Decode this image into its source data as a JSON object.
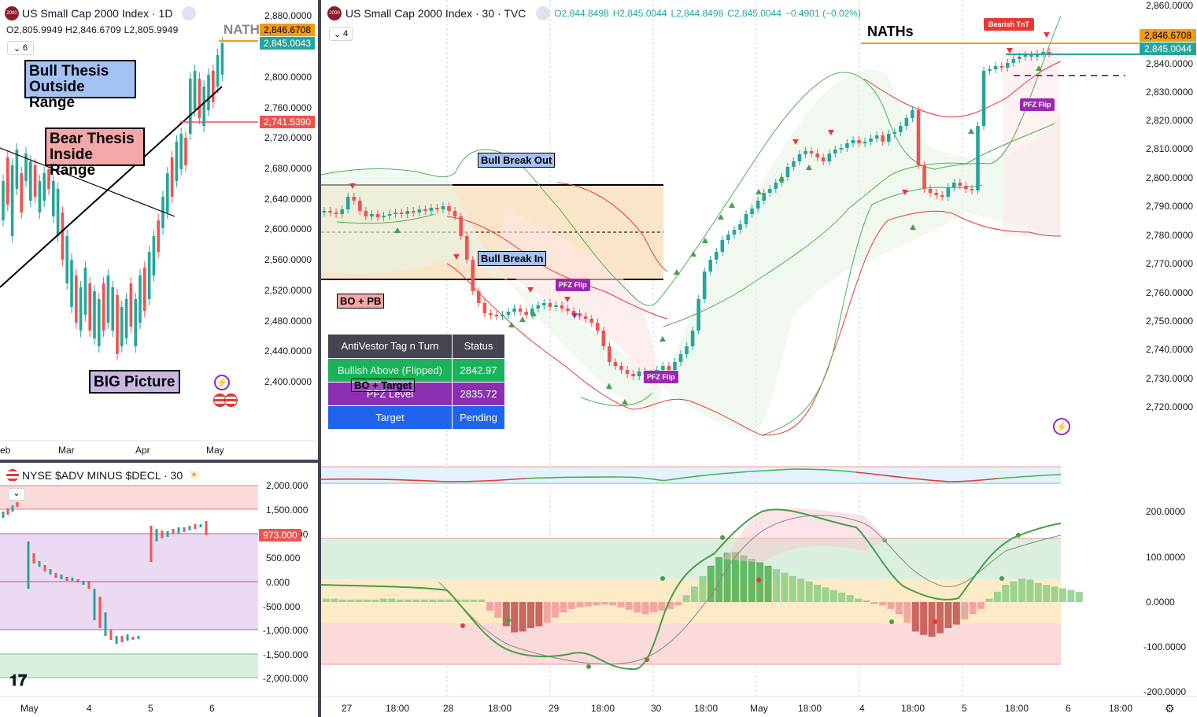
{
  "left_top": {
    "title": "US Small Cap 2000 Index · 1D",
    "ohlc": "O2,805.9949  H2,846.6709  L2,805.9949",
    "indicator_count": "6",
    "price_ticks": [
      "2,880.0000",
      "2,846.6708",
      "2,845.0043",
      "2,800.0000",
      "2,760.0000",
      "2,741.5390",
      "2,720.0000",
      "2,680.0000",
      "2,640.0000",
      "2,600.0000",
      "2,560.0000",
      "2,520.0000",
      "2,480.0000",
      "2,440.0000",
      "2,400.0000"
    ],
    "time_ticks": [
      "eb",
      "Mar",
      "Apr",
      "May"
    ],
    "labels": {
      "bull_thesis": [
        "Bull Thesis",
        "Outside Range"
      ],
      "bear_thesis": [
        "Bear Thesis",
        "Inside Range"
      ],
      "big_picture": "BIG Picture",
      "naths": "NATH"
    },
    "price_badges": {
      "orange": "2,846.6708",
      "green": "2,845.0043",
      "red": "2,741.5390"
    }
  },
  "left_bottom": {
    "title": "NYSE $ADV MINUS $DECL · 30",
    "price_ticks": [
      "2,000.000",
      "1,500.000",
      "1,000.000",
      "500.000",
      "0.000",
      "-500.000",
      "-1,000.000",
      "-1,500.000",
      "-2,000.000"
    ],
    "time_ticks": [
      "May",
      "4",
      "5",
      "6"
    ],
    "badge": "973.000"
  },
  "main": {
    "title": "US Small Cap 2000 Index · 30 · TVC",
    "ohlc": {
      "o": "O2,844.8498",
      "h": "H2,845.0044",
      "l": "L2,844.8498",
      "c": "C2,845.0044",
      "chg": "−0.4901 (−0.02%)"
    },
    "indicator_count": "4",
    "price_ticks": [
      "2,860.0000",
      "2,850.0000",
      "2,840.0000",
      "2,830.0000",
      "2,820.0000",
      "2,810.0000",
      "2,800.0000",
      "2,790.0000",
      "2,780.0000",
      "2,770.0000",
      "2,760.0000",
      "2,750.0000",
      "2,740.0000",
      "2,730.0000",
      "2,720.0000"
    ],
    "price_badges": {
      "orange": "2,846.6708",
      "green": "2,845.0044"
    },
    "osc_ticks": [
      "200.0000",
      "100.0000",
      "0.0000",
      "-100.0000",
      "-200.0000"
    ],
    "time_ticks": [
      "27",
      "18:00",
      "28",
      "18:00",
      "29",
      "18:00",
      "30",
      "18:00",
      "May",
      "18:00",
      "4",
      "18:00",
      "5",
      "18:00",
      "6",
      "18:00"
    ],
    "labels": {
      "bull_break_out": "Bull Break Out",
      "bull_break_in": "Bull Break In",
      "bo_pb": "BO + PB",
      "bo_target": "BO + Target",
      "pfz_flip": "PFZ Flip",
      "bearish_tnt": "Bearish TnT",
      "naths": "NATHs"
    },
    "table": {
      "header": [
        "AntiVestor Tag n Turn",
        "Status"
      ],
      "rows": [
        {
          "label": "Bullish Above (Flipped)",
          "value": "2842.97",
          "color": "#19b35a"
        },
        {
          "label": "PFZ Level",
          "value": "2835.72",
          "color": "#8b2fb0"
        },
        {
          "label": "Target",
          "value": "Pending",
          "color": "#2064ee"
        }
      ]
    }
  },
  "colors": {
    "up": "#26a69a",
    "down": "#ef5350",
    "accent_orange": "#f39c12",
    "green_band": "#4caf50",
    "red_band": "#e53935"
  }
}
